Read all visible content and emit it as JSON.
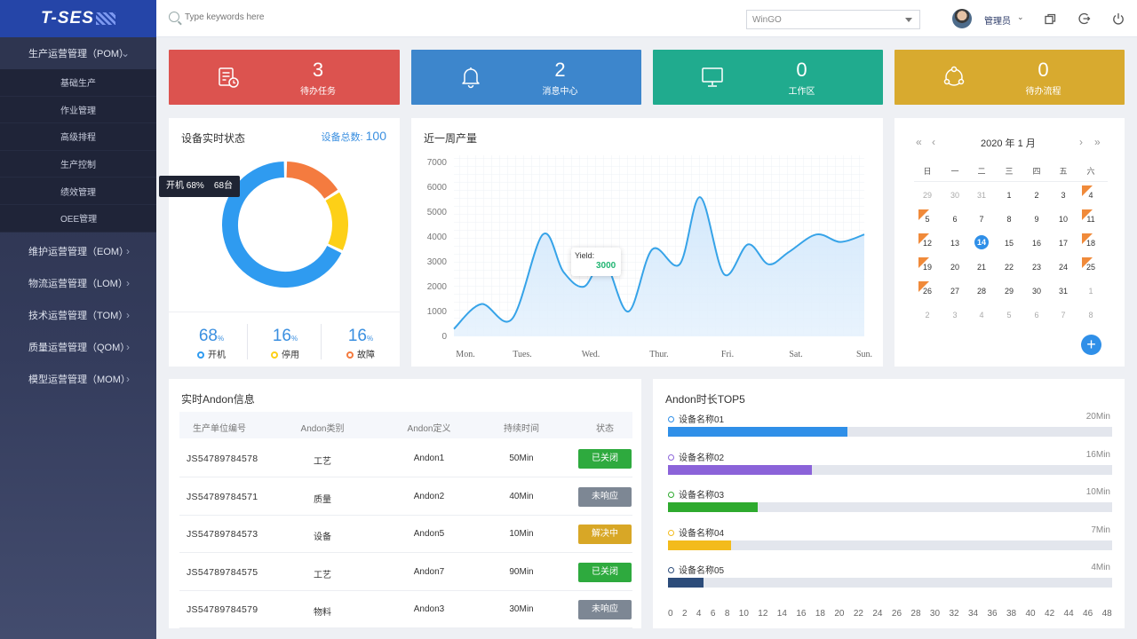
{
  "sidebar": {
    "logo": "T-SES",
    "groups": [
      {
        "label": "生产运营管理（POM）",
        "open": true
      },
      {
        "label": "维护运营管理（EOM）"
      },
      {
        "label": "物流运营管理（LOM）"
      },
      {
        "label": "技术运营管理（TOM）"
      },
      {
        "label": "质量运营管理（QOM）"
      },
      {
        "label": "模型运营管理（MOM）"
      }
    ],
    "sub_items": [
      "基础生产",
      "作业管理",
      "高级排程",
      "生产控制",
      "绩效管理",
      "OEE管理"
    ]
  },
  "header": {
    "search_placeholder": "Type keywords here",
    "plant_select": "WinGO",
    "user": "管理员"
  },
  "stats": [
    {
      "value": "3",
      "label": "待办任务",
      "color": "#dc534f",
      "icon": "task-list-icon"
    },
    {
      "value": "2",
      "label": "消息中心",
      "color": "#3d86cc",
      "icon": "bell-icon"
    },
    {
      "value": "0",
      "label": "工作区",
      "color": "#20ab8e",
      "icon": "monitor-icon"
    },
    {
      "value": "0",
      "label": "待办流程",
      "color": "#d8aa2f",
      "icon": "workflow-icon"
    }
  ],
  "device_status": {
    "title": "设备实时状态",
    "total_label": "设备总数:",
    "total": "100",
    "tooltip": "开机 68%    68台",
    "segments": [
      {
        "label": "开机",
        "pct": "68",
        "unit": "%",
        "color": "#2f9bf0",
        "value": 68
      },
      {
        "label": "停用",
        "pct": "16",
        "unit": "%",
        "color": "#fdd017",
        "value": 16
      },
      {
        "label": "故障",
        "pct": "16",
        "unit": "%",
        "color": "#f47b3f",
        "value": 16
      }
    ]
  },
  "weekly": {
    "title": "近一周产量",
    "tooltip_label": "Yield:",
    "tooltip_value": "3000"
  },
  "chart_data": {
    "type": "area",
    "title": "近一周产量",
    "categories": [
      "Mon.",
      "Tues.",
      "Wed.",
      "Thur.",
      "Fri.",
      "Sat.",
      "Sun."
    ],
    "yticks": [
      "7000",
      "6000",
      "5000",
      "4000",
      "3000",
      "2000",
      "1000",
      "0"
    ],
    "ylim": [
      0,
      7000
    ],
    "x": [
      0,
      0.4,
      0.85,
      1.3,
      1.6,
      1.9,
      2.2,
      2.55,
      2.9,
      3.3,
      3.6,
      3.95,
      4.3,
      4.6,
      4.9,
      5.3,
      5.65,
      6.0
    ],
    "values": [
      300,
      1300,
      700,
      4100,
      2600,
      2000,
      3000,
      1000,
      3500,
      2900,
      5600,
      2500,
      3700,
      2900,
      3400,
      4100,
      3800,
      4100
    ],
    "series_color": "#36a3e8"
  },
  "calendar": {
    "title": "2020 年  1 月",
    "weekdays": [
      "日",
      "一",
      "二",
      "三",
      "四",
      "五",
      "六"
    ],
    "days": [
      [
        "29",
        "30",
        "31",
        "1",
        "2",
        "3",
        "4"
      ],
      [
        "5",
        "6",
        "7",
        "8",
        "9",
        "10",
        "11"
      ],
      [
        "12",
        "13",
        "14",
        "15",
        "16",
        "17",
        "18"
      ],
      [
        "19",
        "20",
        "21",
        "22",
        "23",
        "24",
        "25"
      ],
      [
        "26",
        "27",
        "28",
        "29",
        "30",
        "31",
        "1"
      ],
      [
        "2",
        "3",
        "4",
        "5",
        "6",
        "7",
        "8"
      ]
    ],
    "today": "14",
    "flag_text": "休",
    "add": "+"
  },
  "andon": {
    "title": "实时Andon信息",
    "headers": [
      "生产单位编号",
      "Andon类别",
      "Andon定义",
      "持续时间",
      "状态"
    ],
    "rows": [
      {
        "code": "JS54789784578",
        "type": "工艺",
        "def": "Andon1",
        "dur": "50Min",
        "status": "已关闭",
        "color": "#2eaa3e"
      },
      {
        "code": "JS54789784571",
        "type": "质量",
        "def": "Andon2",
        "dur": "40Min",
        "status": "未响应",
        "color": "#7d8794"
      },
      {
        "code": "JS54789784573",
        "type": "设备",
        "def": "Andon5",
        "dur": "10Min",
        "status": "解决中",
        "color": "#d8a726"
      },
      {
        "code": "JS54789784575",
        "type": "工艺",
        "def": "Andon7",
        "dur": "90Min",
        "status": "已关闭",
        "color": "#2eaa3e"
      },
      {
        "code": "JS54789784579",
        "type": "物料",
        "def": "Andon3",
        "dur": "30Min",
        "status": "未响应",
        "color": "#7d8794"
      }
    ]
  },
  "top5": {
    "title": "Andon时长TOP5",
    "items": [
      {
        "name": "设备名称01",
        "value": "20Min",
        "minutes": 20,
        "color": "#2f8fe8"
      },
      {
        "name": "设备名称02",
        "value": "16Min",
        "minutes": 16,
        "color": "#8b63d9"
      },
      {
        "name": "设备名称03",
        "value": "10Min",
        "minutes": 10,
        "color": "#2eaa2e"
      },
      {
        "name": "设备名称04",
        "value": "7Min",
        "minutes": 7,
        "color": "#f3bb1c"
      },
      {
        "name": "设备名称05",
        "value": "4Min",
        "minutes": 4,
        "color": "#2c4c7a"
      }
    ],
    "axis": [
      "0",
      "2",
      "4",
      "6",
      "8",
      "10",
      "12",
      "14",
      "16",
      "18",
      "20",
      "22",
      "24",
      "26",
      "28",
      "30",
      "32",
      "34",
      "36",
      "38",
      "40",
      "42",
      "44",
      "46",
      "48"
    ]
  }
}
